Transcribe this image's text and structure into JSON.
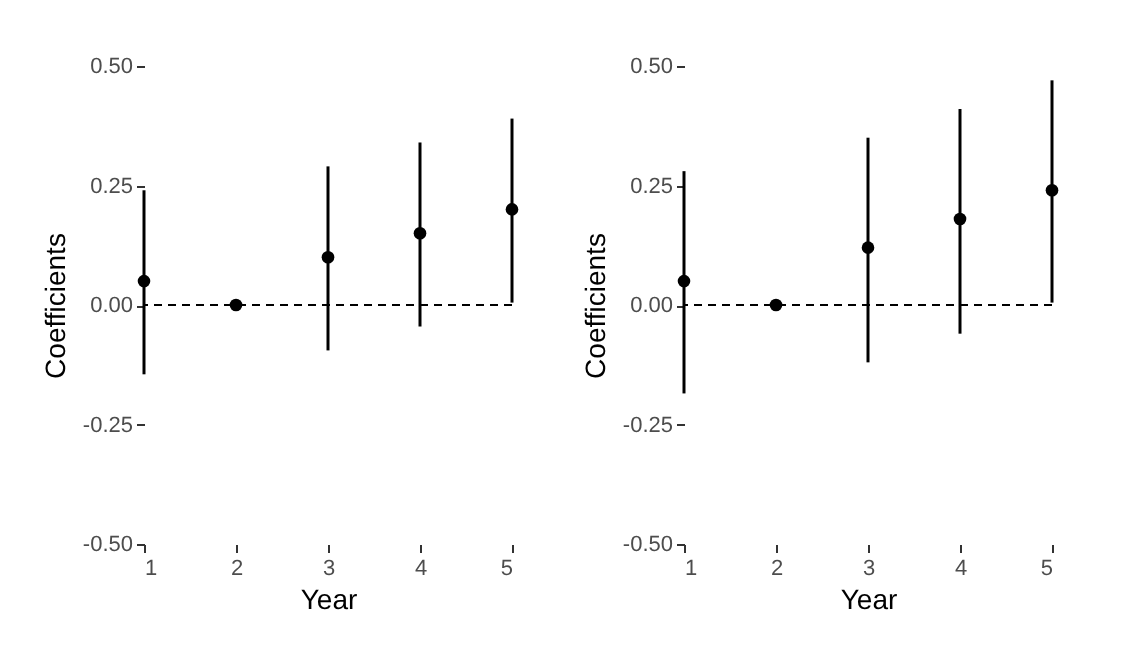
{
  "chart_data": [
    {
      "type": "scatter",
      "xlabel": "Year",
      "ylabel": "Coefficients",
      "x": [
        1,
        2,
        3,
        4,
        5
      ],
      "values": [
        0.05,
        0.0,
        0.1,
        0.15,
        0.2
      ],
      "errors": [
        [
          -0.145,
          0.24
        ],
        null,
        [
          -0.095,
          0.29
        ],
        [
          -0.045,
          0.34
        ],
        [
          0.005,
          0.39
        ]
      ],
      "color": "#000000",
      "marker": "circle",
      "grid": false,
      "xlim": [
        1,
        5
      ],
      "ylim": [
        -0.5,
        0.5
      ],
      "xticks": [
        1,
        2,
        3,
        4,
        5
      ],
      "yticks": [
        {
          "value": -0.5,
          "label": "-0.50"
        },
        {
          "value": -0.25,
          "label": "-0.25"
        },
        {
          "value": 0,
          "label": "0.00"
        },
        {
          "value": 0.25,
          "label": "0.25"
        },
        {
          "value": 0.5,
          "label": "0.50"
        }
      ],
      "ref_lines": [
        {
          "axis": "y",
          "value": 0,
          "line_style": "dashed"
        }
      ]
    },
    {
      "type": "scatter",
      "xlabel": "Year",
      "ylabel": "Coefficients",
      "x": [
        1,
        2,
        3,
        4,
        5
      ],
      "values": [
        0.05,
        0.0,
        0.12,
        0.18,
        0.24
      ],
      "errors": [
        [
          -0.185,
          0.28
        ],
        null,
        [
          -0.12,
          0.35
        ],
        [
          -0.06,
          0.41
        ],
        [
          0.005,
          0.47
        ]
      ],
      "color": "#000000",
      "marker": "circle",
      "grid": false,
      "xlim": [
        1,
        5
      ],
      "ylim": [
        -0.5,
        0.5
      ],
      "xticks": [
        1,
        2,
        3,
        4,
        5
      ],
      "yticks": [
        {
          "value": -0.5,
          "label": "-0.50"
        },
        {
          "value": -0.25,
          "label": "-0.25"
        },
        {
          "value": 0,
          "label": "0.00"
        },
        {
          "value": 0.25,
          "label": "0.25"
        },
        {
          "value": 0.5,
          "label": "0.50"
        }
      ],
      "ref_lines": [
        {
          "axis": "y",
          "value": 0,
          "line_style": "dashed"
        }
      ]
    }
  ]
}
